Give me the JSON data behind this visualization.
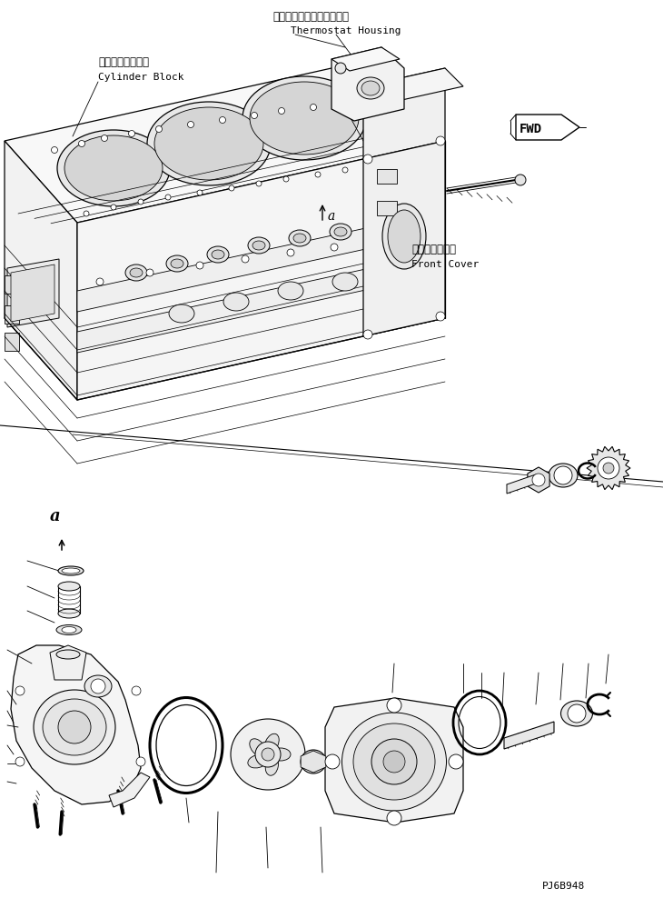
{
  "background_color": "#ffffff",
  "labels": {
    "cylinder_block_jp": "シリンダブロック",
    "cylinder_block_en": "Cylinder Block",
    "thermostat_jp": "サーモスタットハウジング",
    "thermostat_en": "Thermostat Housing",
    "front_cover_jp": "フロントカバー",
    "front_cover_en": "Front Cover",
    "fwd_label": "FWD",
    "label_a": "a",
    "part_number": "PJ6B948"
  }
}
